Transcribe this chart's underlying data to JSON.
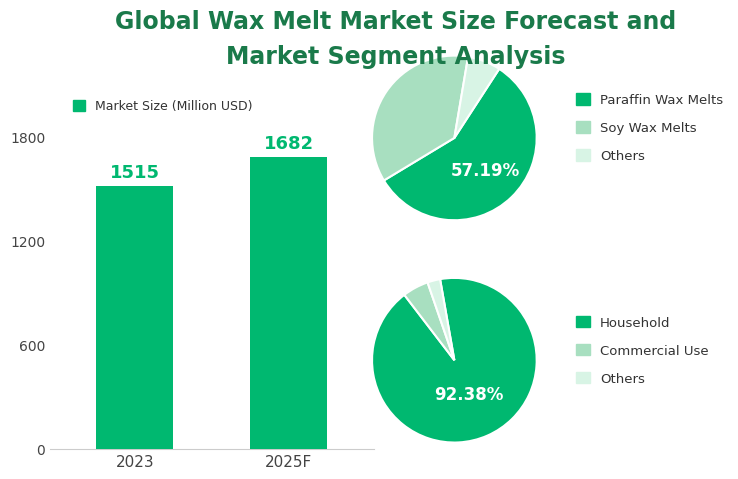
{
  "title_line1": "Global Wax Melt Market Size Forecast and",
  "title_line2": "Market Segment Analysis",
  "title_fontsize": 17,
  "title_color": "#1a7a4a",
  "background_color": "#ffffff",
  "bar_categories": [
    "2023",
    "2025F"
  ],
  "bar_values": [
    1515,
    1682
  ],
  "bar_color": "#00b870",
  "bar_label_color": "#00b870",
  "bar_label_fontsize": 13,
  "bar_legend_label": "Market Size (Million USD)",
  "bar_legend_marker_color": "#00b870",
  "yticks": [
    0,
    600,
    1200,
    1800
  ],
  "ylim": [
    0,
    2050
  ],
  "xtick_fontsize": 11,
  "ytick_fontsize": 10,
  "pie1_values": [
    57.19,
    36.31,
    6.5
  ],
  "pie1_colors": [
    "#00b870",
    "#a8dfc0",
    "#d8f4e5"
  ],
  "pie1_pct_label": "57.19%",
  "pie1_legend_labels": [
    "Paraffin Wax Melts",
    "Soy Wax Melts",
    "Others"
  ],
  "pie1_startangle": 57,
  "pie1_label_color": "white",
  "pie1_label_fontsize": 12,
  "pie2_values": [
    92.38,
    5.12,
    2.5
  ],
  "pie2_colors": [
    "#00b870",
    "#a8dfc0",
    "#d8f4e5"
  ],
  "pie2_pct_label": "92.38%",
  "pie2_legend_labels": [
    "Household",
    "Commercial Use",
    "Others"
  ],
  "pie2_startangle": 100,
  "pie2_label_color": "white",
  "pie2_label_fontsize": 12,
  "legend_fontsize": 9.5
}
